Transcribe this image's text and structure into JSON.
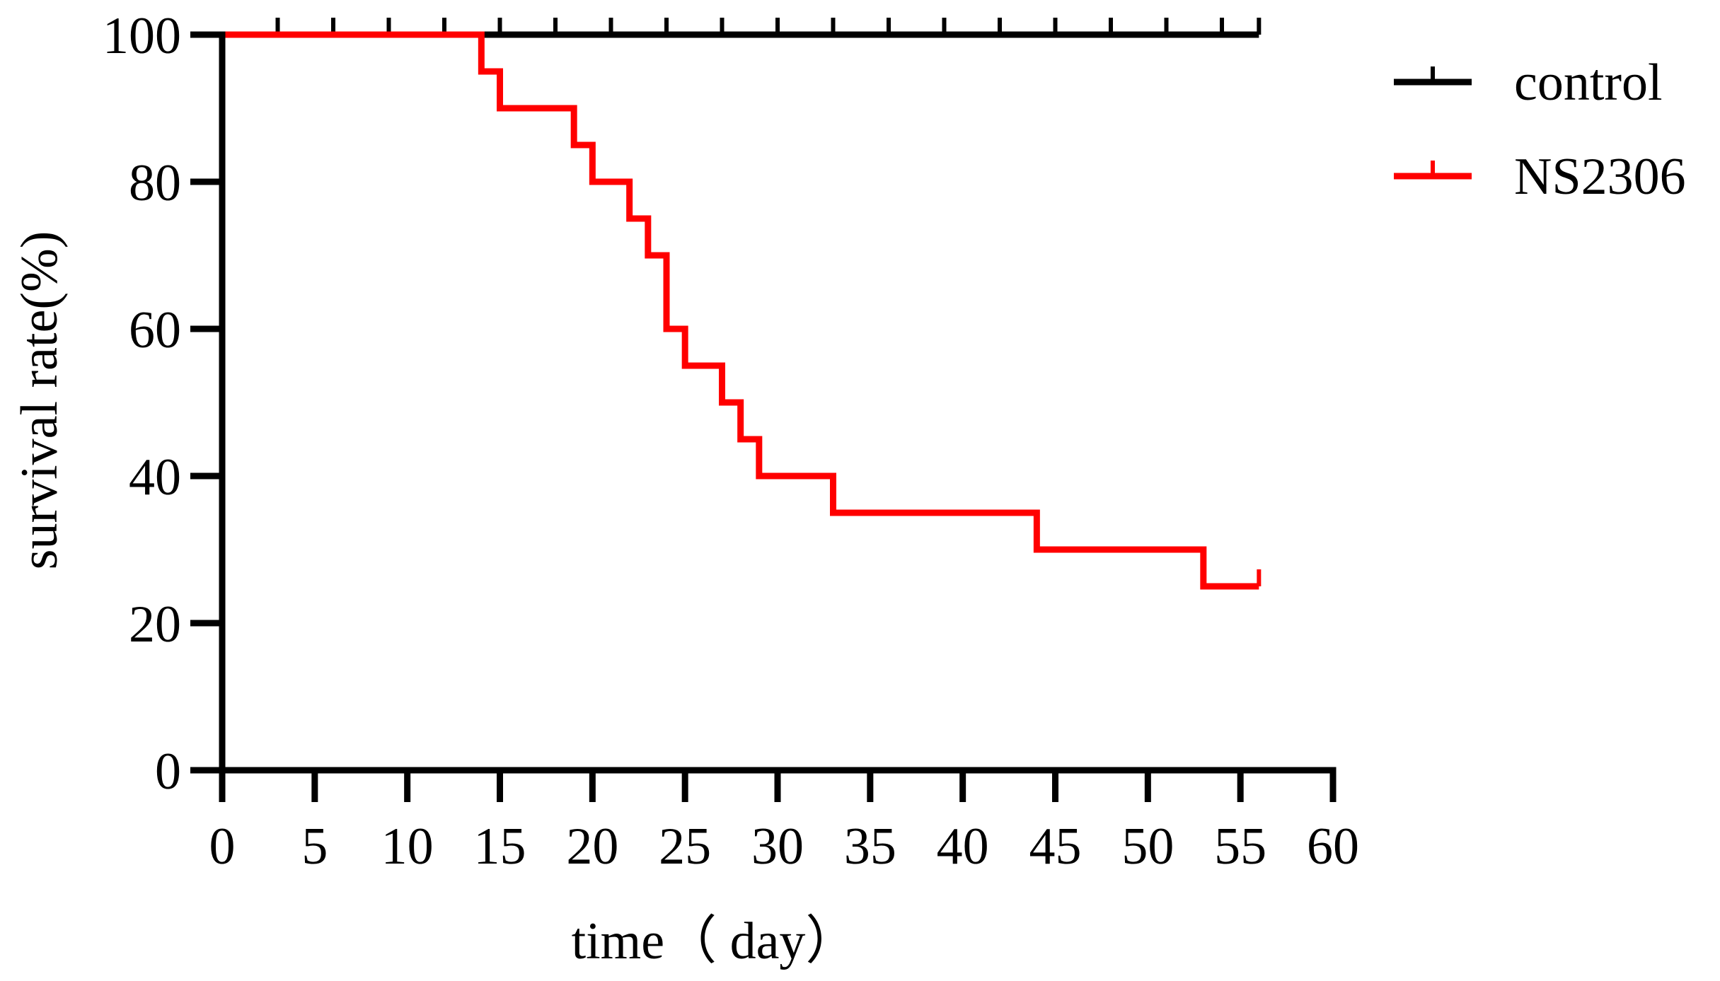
{
  "chart_data": {
    "type": "line",
    "title": "",
    "xlabel": "time（ day）",
    "ylabel": "survival rate(%)",
    "xlim": [
      0,
      60
    ],
    "ylim": [
      0,
      100
    ],
    "xticks": [
      0,
      5,
      10,
      15,
      20,
      25,
      30,
      35,
      40,
      45,
      50,
      55,
      60
    ],
    "yticks": [
      0,
      20,
      40,
      60,
      80,
      100
    ],
    "grid": false,
    "legend_position": "top-right",
    "step": true,
    "series": [
      {
        "name": "control",
        "color": "#000000",
        "x": [
          0,
          56
        ],
        "y": [
          100,
          100
        ],
        "censor_ticks_x": [
          3,
          6,
          9,
          12,
          15,
          18,
          21,
          24,
          27,
          30,
          33,
          36,
          39,
          42,
          45,
          48,
          51,
          54,
          56
        ]
      },
      {
        "name": "NS2306",
        "color": "#ff0000",
        "x": [
          0,
          14,
          15,
          19,
          20,
          22,
          23,
          24,
          25,
          27,
          28,
          29,
          33,
          44,
          53,
          56
        ],
        "y": [
          100,
          95,
          90,
          85,
          80,
          75,
          70,
          60,
          55,
          50,
          45,
          40,
          35,
          30,
          25,
          25
        ],
        "censor_ticks_x": [
          56
        ]
      }
    ]
  }
}
